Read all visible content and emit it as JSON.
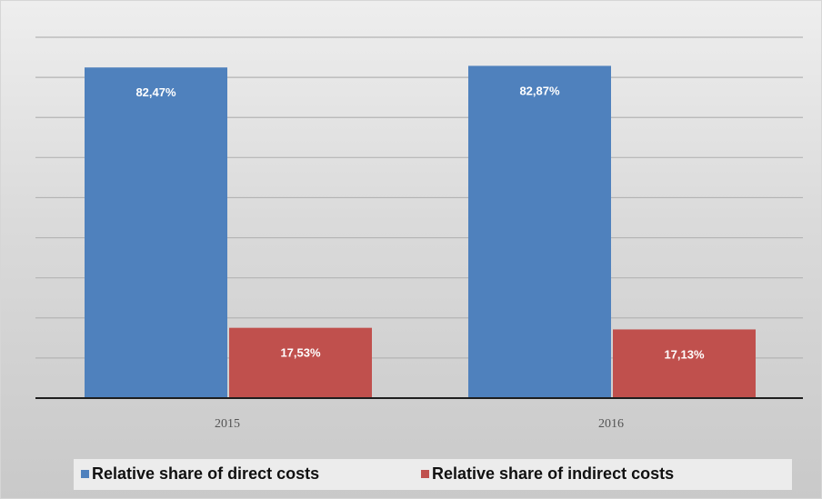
{
  "chart_data": {
    "type": "bar",
    "categories": [
      "2015",
      "2016"
    ],
    "series": [
      {
        "name": "Relative share of direct costs",
        "values": [
          82.47,
          82.87
        ],
        "labels": [
          "82,47%",
          "82,87%"
        ],
        "color": "#4f81bd"
      },
      {
        "name": "Relative share of indirect costs",
        "values": [
          17.53,
          17.13
        ],
        "labels": [
          "17,53%",
          "17,13%"
        ],
        "color": "#c0504d"
      }
    ],
    "ylim": [
      0,
      90
    ],
    "grid": true,
    "legend_position": "bottom"
  }
}
